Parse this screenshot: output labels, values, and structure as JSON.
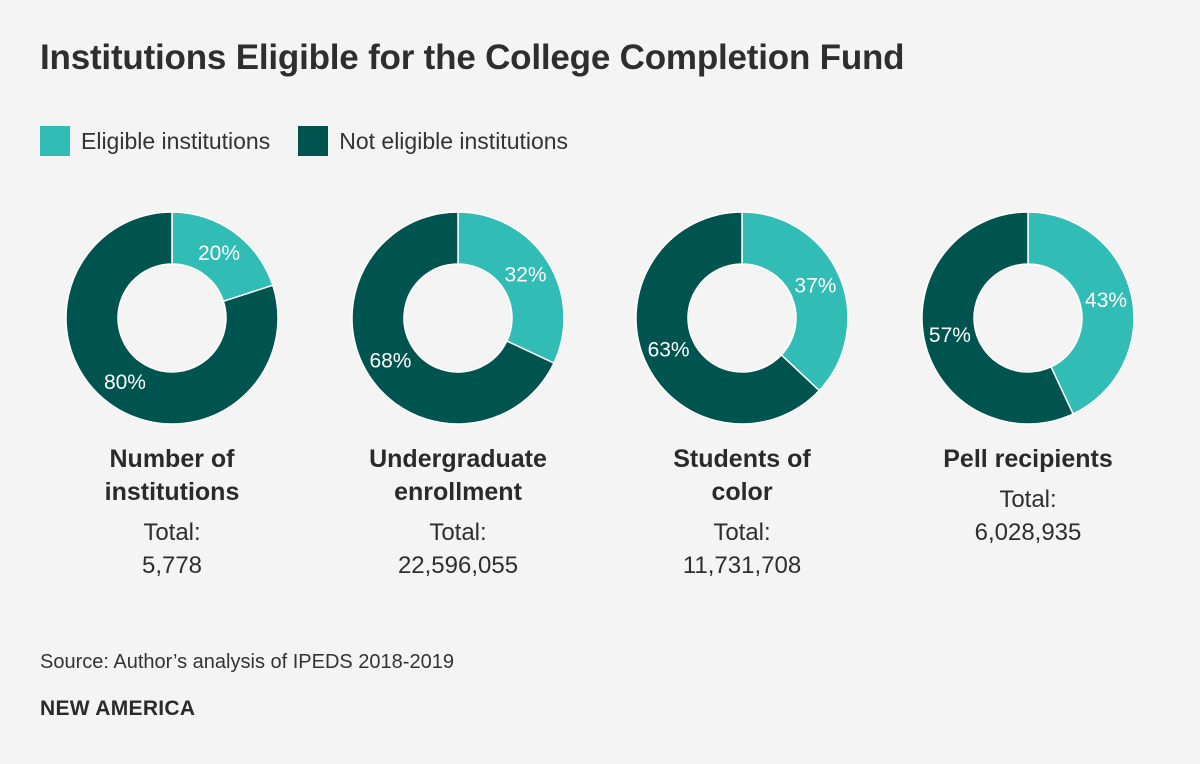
{
  "title": "Institutions Eligible for the College Completion Fund",
  "colors": {
    "eligible": "#31bdb5",
    "not_eligible": "#005450",
    "label_text": "#ffffff",
    "background": "#f4f4f4"
  },
  "legend": [
    {
      "label": "Eligible institutions",
      "color": "#31bdb5"
    },
    {
      "label": "Not eligible institutions",
      "color": "#005450"
    }
  ],
  "chart_data": [
    {
      "type": "pie",
      "donut": true,
      "title": "Number of institutions",
      "title_lines": [
        "Number of",
        "institutions"
      ],
      "total_label": "Total:",
      "total": "5,778",
      "slices": [
        {
          "name": "Eligible institutions",
          "value": 20,
          "label": "20%"
        },
        {
          "name": "Not eligible institutions",
          "value": 80,
          "label": "80%"
        }
      ]
    },
    {
      "type": "pie",
      "donut": true,
      "title": "Undergraduate enrollment",
      "title_lines": [
        "Undergraduate",
        "enrollment"
      ],
      "total_label": "Total:",
      "total": "22,596,055",
      "slices": [
        {
          "name": "Eligible institutions",
          "value": 32,
          "label": "32%"
        },
        {
          "name": "Not eligible institutions",
          "value": 68,
          "label": "68%"
        }
      ]
    },
    {
      "type": "pie",
      "donut": true,
      "title": "Students of color",
      "title_lines": [
        "Students of",
        "color"
      ],
      "total_label": "Total:",
      "total": "11,731,708",
      "slices": [
        {
          "name": "Eligible institutions",
          "value": 37,
          "label": "37%"
        },
        {
          "name": "Not eligible institutions",
          "value": 63,
          "label": "63%"
        }
      ]
    },
    {
      "type": "pie",
      "donut": true,
      "title": "Pell recipients",
      "title_lines": [
        "Pell recipients"
      ],
      "total_label": "Total:",
      "total": "6,028,935",
      "slices": [
        {
          "name": "Eligible institutions",
          "value": 43,
          "label": "43%"
        },
        {
          "name": "Not eligible institutions",
          "value": 57,
          "label": "57%"
        }
      ]
    }
  ],
  "source": "Source: Author’s analysis of IPEDS 2018-2019",
  "brand": "NEW AMERICA"
}
